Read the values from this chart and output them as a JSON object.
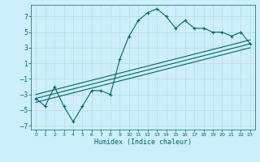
{
  "xlabel": "Humidex (Indice chaleur)",
  "ylabel": "",
  "bg_color": "#cceeff",
  "grid_color": "#bbddcc",
  "line_color": "#006666",
  "xlim": [
    -0.5,
    23.5
  ],
  "ylim": [
    -7.5,
    8.5
  ],
  "xticks": [
    0,
    1,
    2,
    3,
    4,
    5,
    6,
    7,
    8,
    9,
    10,
    11,
    12,
    13,
    14,
    15,
    16,
    17,
    18,
    19,
    20,
    21,
    22,
    23
  ],
  "yticks": [
    -7,
    -5,
    -3,
    -1,
    1,
    3,
    5,
    7
  ],
  "scatter_x": [
    0,
    1,
    2,
    3,
    4,
    5,
    6,
    7,
    8,
    9,
    10,
    11,
    12,
    13,
    14,
    15,
    16,
    17,
    18,
    19,
    20,
    21,
    22,
    23
  ],
  "scatter_y": [
    -3.5,
    -4.5,
    -2.0,
    -4.5,
    -6.5,
    -4.5,
    -2.5,
    -2.5,
    -3.0,
    1.5,
    4.5,
    6.5,
    7.5,
    8.0,
    7.0,
    5.5,
    6.5,
    5.5,
    5.5,
    5.0,
    5.0,
    4.5,
    5.0,
    3.5
  ],
  "line1_x": [
    0,
    23
  ],
  "line1_y": [
    -3.5,
    3.5
  ],
  "line2_x": [
    0,
    23
  ],
  "line2_y": [
    -3.0,
    4.0
  ],
  "line3_x": [
    0,
    23
  ],
  "line3_y": [
    -4.0,
    3.0
  ]
}
